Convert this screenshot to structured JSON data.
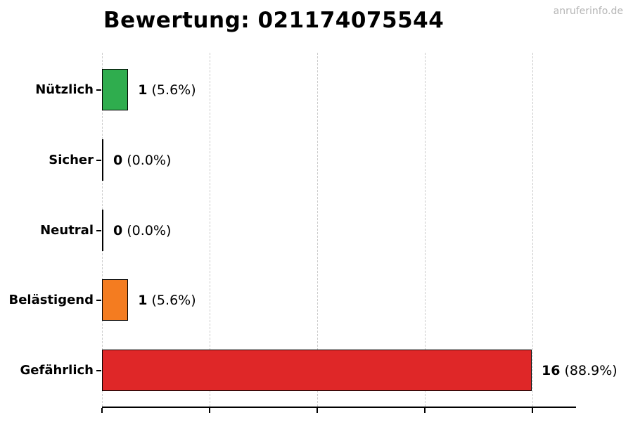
{
  "header": {
    "title": "Bewertung: 021174075544",
    "watermark": "anruferinfo.de"
  },
  "chart_data": {
    "type": "bar",
    "orientation": "horizontal",
    "title": "Bewertung: 021174075544",
    "categories": [
      "Nützlich",
      "Sicher",
      "Neutral",
      "Belästigend",
      "Gefährlich"
    ],
    "values": [
      1,
      0,
      0,
      1,
      16
    ],
    "value_labels": [
      "1",
      "0",
      "0",
      "1",
      "16"
    ],
    "percent_labels": [
      "(5.6%)",
      "(0.0%)",
      "(0.0%)",
      "(5.6%)",
      "(88.9%)"
    ],
    "bar_colors": [
      "#2fad4e",
      "#000000",
      "#000000",
      "#f47c20",
      "#df2728"
    ],
    "bar_border_color": "#000000",
    "x_ticks": [
      0,
      4,
      8,
      12,
      16
    ],
    "xlim": [
      0,
      17.6
    ],
    "grid": "vertical-dashed",
    "gridline_color": "#cccccc",
    "axis_color": "#000000",
    "legend": "none"
  }
}
